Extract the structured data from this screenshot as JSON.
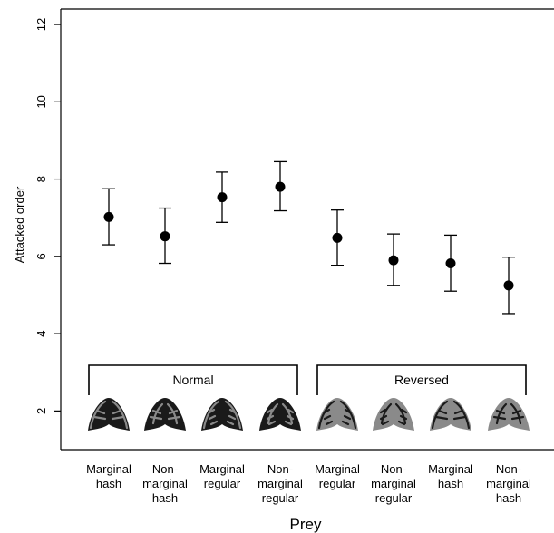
{
  "chart_data": {
    "type": "scatter",
    "xlabel": "Prey",
    "ylabel": "Attacked order",
    "ylim": [
      1.0,
      12.4
    ],
    "yticks": [
      2,
      4,
      6,
      8,
      10,
      12
    ],
    "grid": false,
    "categories": [
      [
        "Marginal",
        "hash"
      ],
      [
        "Non-",
        "marginal",
        "hash"
      ],
      [
        "Marginal",
        "regular"
      ],
      [
        "Non-",
        "marginal",
        "regular"
      ],
      [
        "Marginal",
        "regular"
      ],
      [
        "Non-",
        "marginal",
        "regular"
      ],
      [
        "Marginal",
        "hash"
      ],
      [
        "Non-",
        "marginal",
        "hash"
      ]
    ],
    "points": [
      {
        "mean": 7.02,
        "lower": 6.3,
        "upper": 7.75
      },
      {
        "mean": 6.52,
        "lower": 5.82,
        "upper": 7.25
      },
      {
        "mean": 7.53,
        "lower": 6.88,
        "upper": 8.18
      },
      {
        "mean": 7.8,
        "lower": 7.18,
        "upper": 8.45
      },
      {
        "mean": 6.48,
        "lower": 5.77,
        "upper": 7.2
      },
      {
        "mean": 5.9,
        "lower": 5.25,
        "upper": 6.58
      },
      {
        "mean": 5.82,
        "lower": 5.1,
        "upper": 6.55
      },
      {
        "mean": 5.25,
        "lower": 4.52,
        "upper": 5.98
      }
    ],
    "groups": [
      {
        "label": "Normal",
        "from": 0,
        "to": 3
      },
      {
        "label": "Reversed",
        "from": 4,
        "to": 7
      }
    ],
    "moth_icons": [
      {
        "pattern": "marginal-hash",
        "body": "#1a1a1a",
        "mark": "#8a8a8a"
      },
      {
        "pattern": "nonmarginal-hash",
        "body": "#1a1a1a",
        "mark": "#8a8a8a"
      },
      {
        "pattern": "marginal-regular",
        "body": "#1a1a1a",
        "mark": "#8a8a8a"
      },
      {
        "pattern": "nonmarginal-regular",
        "body": "#1a1a1a",
        "mark": "#8a8a8a"
      },
      {
        "pattern": "marginal-regular",
        "body": "#8a8a8a",
        "mark": "#1a1a1a"
      },
      {
        "pattern": "nonmarginal-regular",
        "body": "#8a8a8a",
        "mark": "#1a1a1a"
      },
      {
        "pattern": "marginal-hash",
        "body": "#8a8a8a",
        "mark": "#1a1a1a"
      },
      {
        "pattern": "nonmarginal-hash",
        "body": "#8a8a8a",
        "mark": "#1a1a1a"
      }
    ]
  }
}
